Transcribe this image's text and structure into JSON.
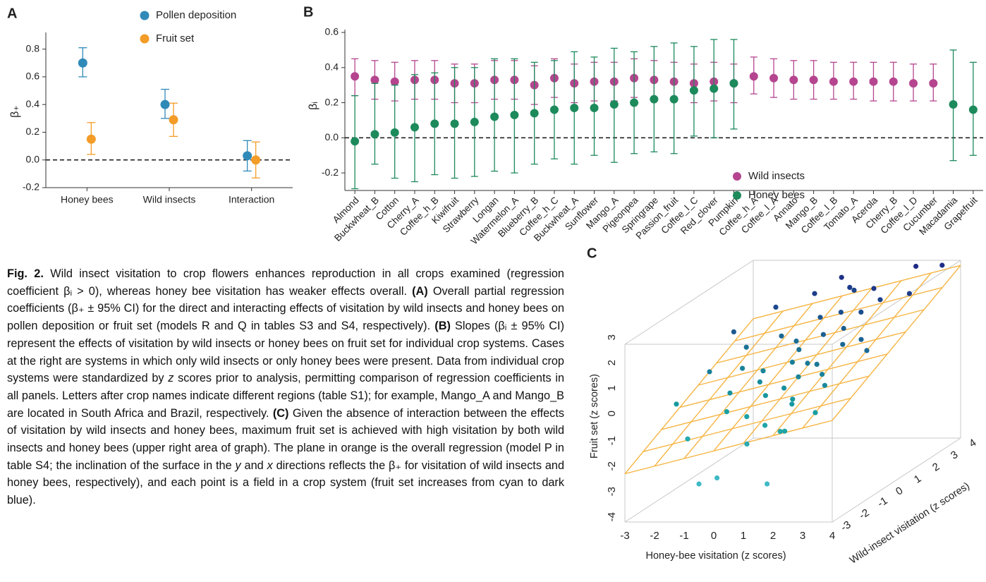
{
  "chart_data": [
    {
      "type": "errorbar",
      "panel": "A",
      "ylabel": "β₊",
      "categories": [
        "Honey bees",
        "Wild insects",
        "Interaction"
      ],
      "series": [
        {
          "name": "Pollen deposition",
          "color": "#2f8ab8",
          "values": [
            0.7,
            0.4,
            0.03
          ],
          "lower": [
            0.6,
            0.3,
            -0.08
          ],
          "upper": [
            0.81,
            0.51,
            0.14
          ]
        },
        {
          "name": "Fruit set",
          "color": "#f39c27",
          "values": [
            0.15,
            0.29,
            0.0
          ],
          "lower": [
            0.04,
            0.17,
            -0.13
          ],
          "upper": [
            0.27,
            0.41,
            0.13
          ]
        }
      ],
      "ylim": [
        -0.2,
        0.9
      ],
      "yticks": [
        -0.2,
        {
          "value": 0,
          "label": "0.0"
        },
        0.2,
        0.4,
        0.6,
        0.8
      ],
      "hline": 0,
      "legend": "top"
    },
    {
      "type": "errorbar",
      "panel": "B",
      "ylabel": "βᵢ",
      "categories": [
        "Almond",
        "Buckwheat_B",
        "Cotton",
        "Cherry_A",
        "Coffee_h_B",
        "Kiwifruit",
        "Strawberry",
        "Longan",
        "Watermelon_A",
        "Blueberry_B",
        "Coffee_h_C",
        "Buckwheat_A",
        "Sunflower",
        "Mango_A",
        "Pigeonpea",
        "Springrape",
        "Passion_fruit",
        "Coffee_l_C",
        "Red_clover",
        "Pumpkin",
        "Coffee_h_A",
        "Coffee_l_A",
        "Annato",
        "Mango_B",
        "Coffee_l_B",
        "Tomato_A",
        "Acerola",
        "Cherry_B",
        "Coffee_l_D",
        "Cucumber",
        "Macadamia",
        "Grapefruit"
      ],
      "series": [
        {
          "name": "Wild insects",
          "color": "#b5458f",
          "values": [
            0.35,
            0.33,
            0.32,
            0.33,
            0.33,
            0.31,
            0.31,
            0.33,
            0.33,
            0.3,
            0.34,
            0.31,
            0.32,
            0.32,
            0.34,
            0.33,
            0.32,
            0.31,
            0.32,
            0.31,
            0.35,
            0.34,
            0.33,
            0.33,
            0.32,
            0.32,
            0.32,
            0.32,
            0.31,
            0.31,
            null,
            null
          ],
          "lower": [
            0.24,
            0.22,
            0.21,
            0.22,
            0.22,
            0.2,
            0.2,
            0.22,
            0.22,
            0.19,
            0.23,
            0.2,
            0.21,
            0.21,
            0.23,
            0.22,
            0.21,
            0.2,
            0.21,
            0.2,
            0.25,
            0.23,
            0.22,
            0.22,
            0.22,
            0.22,
            0.21,
            0.21,
            0.21,
            0.21,
            null,
            null
          ],
          "upper": [
            0.45,
            0.44,
            0.43,
            0.44,
            0.44,
            0.42,
            0.42,
            0.44,
            0.44,
            0.41,
            0.45,
            0.42,
            0.43,
            0.43,
            0.45,
            0.44,
            0.43,
            0.42,
            0.43,
            0.42,
            0.46,
            0.45,
            0.44,
            0.44,
            0.43,
            0.43,
            0.43,
            0.43,
            0.42,
            0.42,
            null,
            null
          ]
        },
        {
          "name": "Honey bees",
          "color": "#1d8a5c",
          "values": [
            -0.02,
            0.02,
            0.03,
            0.06,
            0.08,
            0.08,
            0.09,
            0.12,
            0.13,
            0.14,
            0.16,
            0.17,
            0.17,
            0.19,
            0.2,
            0.22,
            0.22,
            0.27,
            0.28,
            0.31,
            null,
            null,
            null,
            null,
            null,
            null,
            null,
            null,
            null,
            null,
            0.19,
            0.16
          ],
          "lower": [
            -0.29,
            -0.15,
            -0.23,
            -0.25,
            -0.21,
            -0.23,
            -0.22,
            -0.19,
            -0.2,
            -0.15,
            -0.12,
            -0.15,
            -0.1,
            -0.14,
            -0.09,
            -0.08,
            -0.09,
            0.01,
            0.0,
            0.05,
            null,
            null,
            null,
            null,
            null,
            null,
            null,
            null,
            null,
            null,
            -0.13,
            -0.1
          ],
          "upper": [
            0.24,
            0.31,
            0.3,
            0.36,
            0.37,
            0.4,
            0.4,
            0.45,
            0.45,
            0.43,
            0.44,
            0.49,
            0.46,
            0.51,
            0.49,
            0.52,
            0.54,
            0.52,
            0.56,
            0.56,
            null,
            null,
            null,
            null,
            null,
            null,
            null,
            null,
            null,
            null,
            0.5,
            0.43
          ]
        }
      ],
      "ylim": [
        -0.3,
        0.6
      ],
      "yticks": [
        -0.2,
        {
          "value": 0,
          "label": "0.0"
        },
        0.2,
        0.4,
        0.6
      ],
      "hline": 0,
      "legend": "lower right"
    },
    {
      "type": "scatter3d",
      "panel": "C",
      "xlabel": "Honey-bee visitation (z scores)",
      "ylabel": "Wild-insect visitation (z scores)",
      "zlabel": "Fruit set (z scores)",
      "x": [
        -2.5,
        -2,
        -1.8,
        -1.5,
        -1.2,
        -1,
        -0.8,
        -0.5,
        -0.3,
        0,
        0.2,
        0.4,
        0.6,
        0.8,
        1,
        1.2,
        1.4,
        1.6,
        1.8,
        2,
        2.2,
        2.5,
        2.8,
        3,
        -1,
        -0.5,
        0,
        0.5,
        1,
        1.5,
        2,
        2.5,
        0.3,
        0.7,
        1.1,
        1.9,
        -0.2,
        0.9,
        1.3,
        2.4,
        -0.5,
        1.8,
        -1.5,
        0,
        1,
        2,
        3.2,
        3.5,
        0.5,
        1.5
      ],
      "y": [
        -1,
        0,
        1,
        -2,
        0.5,
        2,
        -1,
        1.5,
        0,
        2.5,
        -0.5,
        1,
        3,
        -1.5,
        0.5,
        2,
        -1,
        1.5,
        0,
        2.5,
        -0.5,
        1,
        3.5,
        0.5,
        -0.5,
        0.5,
        1.5,
        -2,
        2.8,
        0.2,
        1.8,
        -1.5,
        0.8,
        -0.3,
        1.2,
        -2.2,
        -2.5,
        3.2,
        -0.8,
        2.2,
        -3,
        -3,
        1.2,
        -1.2,
        0,
        0.8,
        2.5,
        3.8,
        2,
        -1.8
      ],
      "z": [
        -0.3,
        0.5,
        1.6,
        -1.2,
        0.4,
        2.1,
        -0.6,
        1.2,
        0.1,
        2.4,
        -0.2,
        0.9,
        2.8,
        -0.9,
        0.6,
        1.9,
        -0.3,
        1.5,
        0.4,
        2.6,
        0.2,
        1.3,
        3.0,
        1.1,
        -0.1,
        0.3,
        1.0,
        -1.4,
        2.5,
        0.7,
        2.0,
        -0.4,
        0.5,
        0.0,
        1.4,
        -0.8,
        -2.5,
        2.2,
        -0.2,
        2.3,
        -2.5,
        -2.5,
        0.9,
        -0.7,
        0.3,
        1.2,
        2.4,
        2.9,
        1.7,
        -1.0
      ],
      "xlim": [
        -3,
        4
      ],
      "ylim": [
        -3,
        4
      ],
      "zlim": [
        -4,
        3
      ],
      "xticks": [
        -3,
        -2,
        -1,
        0,
        1,
        2,
        3,
        4
      ],
      "yticks": [
        -3,
        -2,
        -1,
        0,
        1,
        2,
        3,
        4
      ],
      "zticks": [
        -4,
        -3,
        -2,
        -1,
        0,
        1,
        2,
        3
      ],
      "plane": {
        "intercept": 0,
        "slope_x": 0.3,
        "slope_y": 0.4,
        "color": "#f6b545"
      },
      "color_scale": [
        "#5ccbe0",
        "#17a0a0",
        "#1f2a86"
      ]
    }
  ],
  "caption": {
    "segments": [
      "Fig. 2.",
      " Wild insect visitation to crop flowers enhances reproduction in all crops examined (regression coefficient βᵢ > 0), whereas honey bee visitation has weaker effects overall. ",
      "(A)",
      " Overall partial regression coefficients (β₊ ± 95% CI) for the direct and interacting effects of visitation by wild insects and honey bees on pollen deposition or fruit set (models R and Q in tables S3 and S4, respectively). ",
      "(B)",
      " Slopes (βᵢ ± 95% CI) represent the effects of visitation by wild insects or honey bees on fruit set for individual crop systems. Cases at the right are systems in which only wild insects or only honey bees were present. Data from individual crop systems were standardized by ",
      "z",
      " scores prior to analysis, permitting comparison of regression coefficients in all panels. Letters after crop names indicate different regions (table S1); for example, Mango_A and Mango_B are located in South Africa and Brazil, respectively. ",
      "(C)",
      " Given the absence of interaction between the effects of visitation by wild insects and honey bees, maximum fruit set is achieved with high visitation by both wild insects and honey bees (upper right area of graph). The plane in orange is the overall regression (model P in table S4; the inclination of the surface in the ",
      "y",
      " and ",
      "x",
      " directions reflects the β₊ for visitation of wild insects and honey bees, respectively), and each point is a field in a crop system (fruit set increases from cyan to dark blue)."
    ]
  }
}
